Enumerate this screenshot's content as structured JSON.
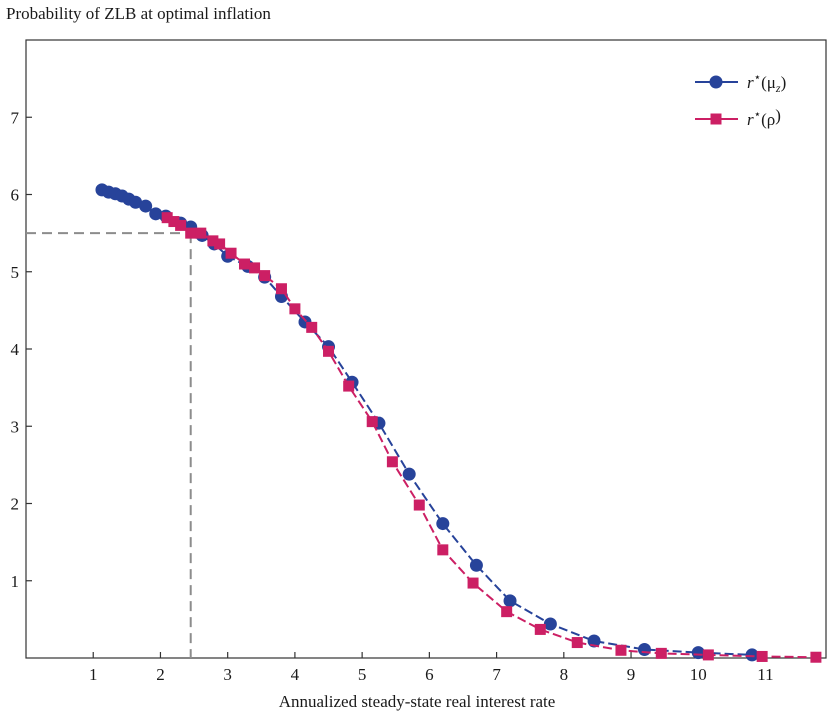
{
  "chart_data": {
    "type": "line",
    "title": "Probability of ZLB at optimal inflation",
    "xlabel": "Annualized steady-state real interest rate",
    "ylabel": "",
    "xlim": [
      0,
      11.9
    ],
    "ylim": [
      0,
      8
    ],
    "xticks": [
      1,
      2,
      3,
      4,
      5,
      6,
      7,
      8,
      9,
      10,
      11
    ],
    "yticks": [
      1,
      2,
      3,
      4,
      5,
      6,
      7
    ],
    "grid": false,
    "legend": "top-right",
    "reference": {
      "x": 2.45,
      "y": 5.5
    },
    "series": [
      {
        "name": "r⋆(μz)",
        "legend_main": "r",
        "legend_sup": "⋆",
        "legend_arg": "(μ",
        "legend_sub": "z",
        "legend_close": ")",
        "color": "#27439a",
        "marker": "circle",
        "x": [
          1.13,
          1.23,
          1.33,
          1.43,
          1.53,
          1.63,
          1.78,
          1.93,
          2.08,
          2.3,
          2.45,
          2.62,
          2.8,
          3.0,
          3.3,
          3.55,
          3.8,
          4.15,
          4.5,
          4.85,
          5.25,
          5.7,
          6.2,
          6.7,
          7.2,
          7.8,
          8.45,
          9.2,
          10.0,
          10.8
        ],
        "y": [
          6.06,
          6.03,
          6.01,
          5.98,
          5.94,
          5.9,
          5.85,
          5.75,
          5.72,
          5.63,
          5.58,
          5.47,
          5.36,
          5.2,
          5.07,
          4.93,
          4.68,
          4.35,
          4.03,
          3.57,
          3.04,
          2.38,
          1.74,
          1.2,
          0.74,
          0.44,
          0.22,
          0.11,
          0.07,
          0.04
        ]
      },
      {
        "name": "r⋆(ρ)",
        "legend_main": "r",
        "legend_sup": "⋆",
        "legend_arg": "(ρ",
        "legend_sub": "",
        "legend_close": ")",
        "color": "#cc1f64",
        "marker": "square",
        "x": [
          2.1,
          2.2,
          2.3,
          2.45,
          2.6,
          2.78,
          2.88,
          3.05,
          3.25,
          3.4,
          3.55,
          3.8,
          4.0,
          4.25,
          4.5,
          4.8,
          5.15,
          5.45,
          5.85,
          6.2,
          6.65,
          7.15,
          7.65,
          8.2,
          8.85,
          9.45,
          10.15,
          10.95,
          11.75
        ],
        "y": [
          5.7,
          5.65,
          5.6,
          5.5,
          5.5,
          5.4,
          5.36,
          5.24,
          5.1,
          5.05,
          4.95,
          4.78,
          4.52,
          4.28,
          3.97,
          3.52,
          3.06,
          2.54,
          1.98,
          1.4,
          0.97,
          0.6,
          0.37,
          0.2,
          0.1,
          0.06,
          0.04,
          0.02,
          0.01
        ]
      }
    ]
  }
}
